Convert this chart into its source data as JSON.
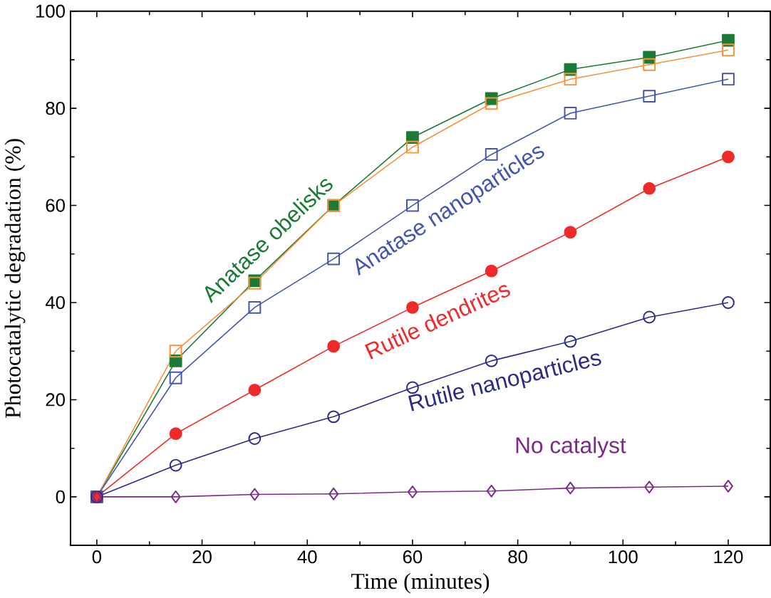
{
  "chart_data": {
    "type": "line",
    "xlabel": "Time (minutes)",
    "ylabel": "Photocatalytic degradation  (%)",
    "xlim": [
      -5,
      128
    ],
    "ylim": [
      -10,
      100
    ],
    "xticks": [
      0,
      20,
      40,
      60,
      80,
      100,
      120
    ],
    "yticks": [
      0,
      20,
      40,
      60,
      80,
      100
    ],
    "grid": false,
    "legend": false,
    "line_style": "solid",
    "x": [
      0,
      15,
      30,
      45,
      60,
      75,
      90,
      105,
      120
    ],
    "series": [
      {
        "name": "Anatase obelisks",
        "color": "#1b7a36",
        "marker": "square",
        "values": [
          0,
          28,
          44.5,
          60,
          74,
          82,
          88,
          90.5,
          94
        ]
      },
      {
        "name": null,
        "color": "#f7923a",
        "marker": "square",
        "values": [
          0,
          30,
          44,
          60,
          72,
          81,
          86,
          89,
          92
        ]
      },
      {
        "name": "Anatase nanoparticles",
        "color": "#4455b0",
        "marker": "square",
        "values": [
          0,
          24.5,
          39,
          49,
          60,
          70.5,
          79,
          82.5,
          86
        ]
      },
      {
        "name": "Rutile dendrites",
        "color": "#ee2a2a",
        "marker": "circle",
        "values": [
          0,
          13,
          22,
          31,
          39,
          46.5,
          54.5,
          63.5,
          70
        ]
      },
      {
        "name": "Rutile nanoparticles",
        "color": "#2b2b8a",
        "marker": "circle",
        "values": [
          0,
          6.5,
          12,
          16.5,
          22.5,
          28,
          32,
          37,
          40
        ]
      },
      {
        "name": "No catalyst",
        "color": "#7b2a8a",
        "marker": "diamond",
        "values": [
          0,
          0,
          0.5,
          0.6,
          1,
          1.2,
          1.8,
          2,
          2.2
        ]
      }
    ]
  }
}
